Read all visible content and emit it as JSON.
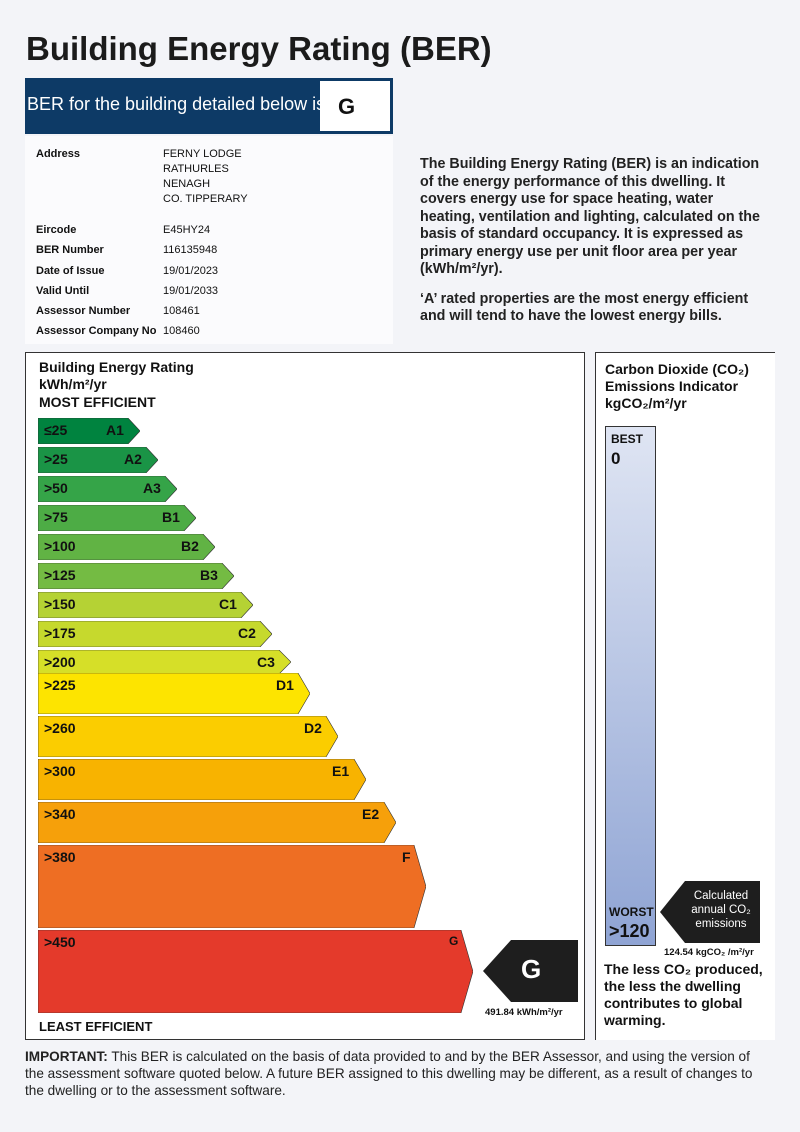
{
  "title": "Building Energy Rating (BER)",
  "banner": {
    "label": "BER for the building detailed below is:",
    "rating": "G"
  },
  "details": {
    "address_label": "Address",
    "address": [
      "FERNY LODGE",
      "RATHURLES",
      "NENAGH",
      "CO. TIPPERARY"
    ],
    "rows": [
      {
        "label": "Eircode",
        "value": "E45HY24"
      },
      {
        "label": "BER Number",
        "value": "116135948"
      },
      {
        "label": "Date of Issue",
        "value": "19/01/2023"
      },
      {
        "label": "Valid Until",
        "value": "19/01/2033"
      },
      {
        "label": "Assessor Number",
        "value": "108461"
      },
      {
        "label": "Assessor Company No",
        "value": "108460"
      }
    ]
  },
  "intro": [
    "The Building Energy Rating (BER) is an indication of the energy performance of this dwelling. It covers energy use for space heating, water heating, ventilation and lighting, calculated on the basis of standard occupancy. It is expressed as primary energy use per unit floor area per year (kWh/m²/yr).",
    "‘A’ rated properties are the most energy efficient and will tend to have the lowest energy bills."
  ],
  "rating": {
    "heading1": "Building Energy Rating",
    "heading2": "kWh/m²/yr",
    "heading3": "MOST EFFICIENT",
    "footer": "LEAST EFFICIENT",
    "bands": [
      {
        "range": "≤25",
        "cls": "A1",
        "color": "#00833f"
      },
      {
        "range": ">25",
        "cls": "A2",
        "color": "#1a9446"
      },
      {
        "range": ">50",
        "cls": "A3",
        "color": "#35a448"
      },
      {
        "range": ">75",
        "cls": "B1",
        "color": "#4dac45"
      },
      {
        "range": ">100",
        "cls": "B2",
        "color": "#61b344"
      },
      {
        "range": ">125",
        "cls": "B3",
        "color": "#74bb43"
      },
      {
        "range": ">150",
        "cls": "C1",
        "color": "#b5d234"
      },
      {
        "range": ">175",
        "cls": "C2",
        "color": "#c6d92d"
      },
      {
        "range": ">200",
        "cls": "C3",
        "color": "#d6df28"
      },
      {
        "range": ">225",
        "cls": "D1",
        "color": "#fde400"
      },
      {
        "range": ">260",
        "cls": "D2",
        "color": "#fbcd00"
      },
      {
        "range": ">300",
        "cls": "E1",
        "color": "#f8b300"
      },
      {
        "range": ">340",
        "cls": "E2",
        "color": "#f6a00a"
      },
      {
        "range": ">380",
        "cls": "F",
        "color": "#ee6e23"
      },
      {
        "range": ">450",
        "cls": "G",
        "color": "#e43a2b"
      }
    ],
    "current": "G",
    "value_label": "491.84 kWh/m²/yr"
  },
  "co2": {
    "heading1": "Carbon Dioxide (CO₂)",
    "heading2": "Emissions Indicator",
    "heading3": "kgCO₂/m²/yr",
    "best": "BEST",
    "best_value": "0",
    "worst": "WORST",
    "worst_value": ">120",
    "arrow_text": [
      "Calculated",
      "annual CO₂",
      "emissions"
    ],
    "value_label": "124.54 kgCO₂ /m²/yr",
    "footer": "The less CO₂ produced, the less the dwelling contributes to global warming."
  },
  "important": {
    "bold": "IMPORTANT:",
    "text": " This BER is calculated on the basis of data provided to and by the BER Assessor, and using the version of the assessment software quoted below.  A future BER assigned to this dwelling may be different, as a result of changes to the dwelling or to the assessment software."
  }
}
